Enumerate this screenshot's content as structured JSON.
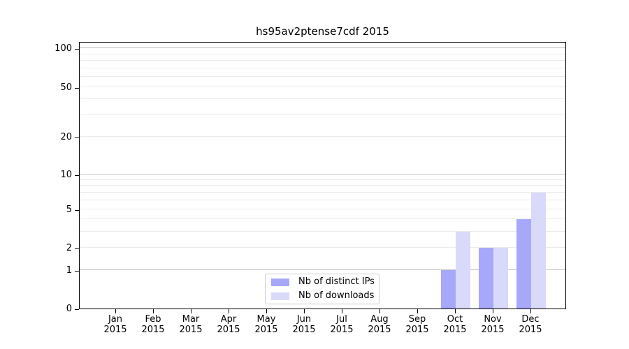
{
  "title": "hs95av2ptense7cdf 2015",
  "colors": {
    "bar_ips": "#a8a8fa",
    "bar_downloads": "#d9d9fa",
    "grid_major": "#c2c2c2",
    "grid_minor": "#ebebeb",
    "spine": "#000000",
    "legend_border": "#cccccc"
  },
  "legend": {
    "items": [
      {
        "label": "Nb of distinct IPs",
        "color": "#a8a8fa"
      },
      {
        "label": "Nb of downloads",
        "color": "#d9d9fa"
      }
    ]
  },
  "chart_data": {
    "type": "bar",
    "title": "hs95av2ptense7cdf 2015",
    "x_months": [
      "Jan",
      "Feb",
      "Mar",
      "Apr",
      "May",
      "Jun",
      "Jul",
      "Aug",
      "Sep",
      "Oct",
      "Nov",
      "Dec"
    ],
    "x_year": "2015",
    "categories": [
      "Jan 2015",
      "Feb 2015",
      "Mar 2015",
      "Apr 2015",
      "May 2015",
      "Jun 2015",
      "Jul 2015",
      "Aug 2015",
      "Sep 2015",
      "Oct 2015",
      "Nov 2015",
      "Dec 2015"
    ],
    "series": [
      {
        "name": "Nb of distinct IPs",
        "color": "#a8a8fa",
        "values": [
          0,
          0,
          0,
          0,
          0,
          0,
          0,
          0,
          0,
          1,
          2,
          4
        ]
      },
      {
        "name": "Nb of downloads",
        "color": "#d9d9fa",
        "values": [
          0,
          0,
          0,
          0,
          0,
          0,
          0,
          0,
          0,
          3,
          2,
          7
        ]
      }
    ],
    "xlabel": "",
    "ylabel": "",
    "y_axis": {
      "scale": "log1p",
      "ylim": [
        0,
        115
      ],
      "ticks": [
        0,
        1,
        2,
        5,
        10,
        20,
        50,
        100
      ],
      "major_gridlines": [
        1,
        10,
        100
      ],
      "minor_gridlines": [
        2,
        3,
        4,
        5,
        6,
        7,
        8,
        9,
        20,
        30,
        40,
        50,
        60,
        70,
        80,
        90
      ]
    },
    "grid": true,
    "legend_position": "lower-center-inside"
  }
}
